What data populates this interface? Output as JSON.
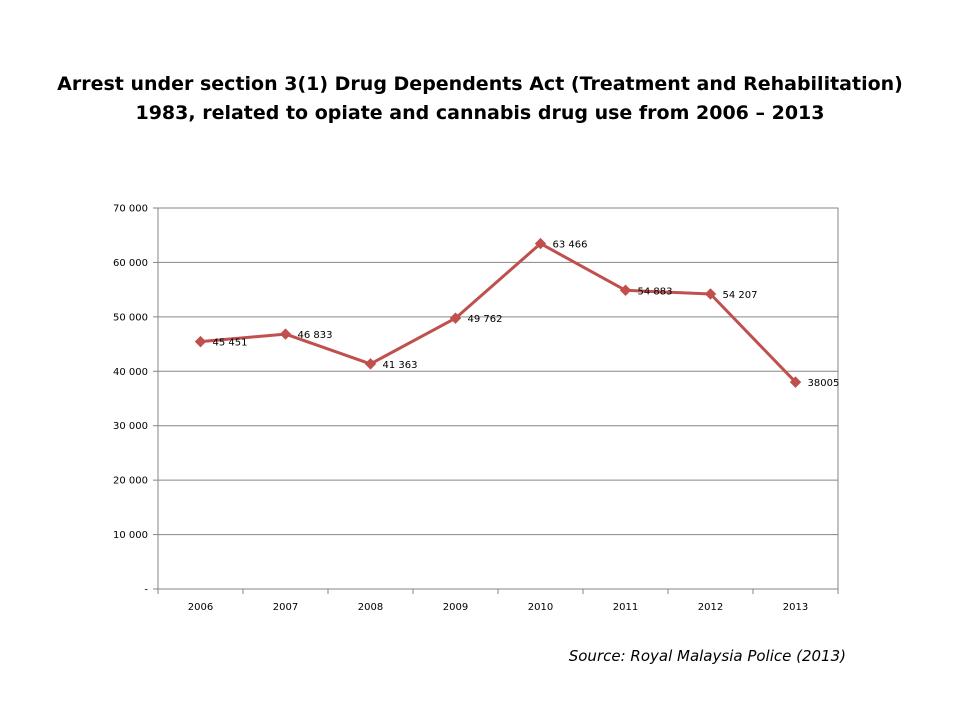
{
  "title": {
    "line1": "Arrest under section 3(1) Drug Dependents Act (Treatment and Rehabilitation)",
    "line2": "1983, related to opiate and cannabis drug use from 2006 – 2013"
  },
  "source": "Source: Royal Malaysia Police (2013)",
  "chart_data": {
    "type": "line",
    "categories": [
      "2006",
      "2007",
      "2008",
      "2009",
      "2010",
      "2011",
      "2012",
      "2013"
    ],
    "series": [
      {
        "values": [
          45451,
          46833,
          41363,
          49762,
          63466,
          54883,
          54207,
          38005
        ],
        "data_labels": [
          "45 451",
          "46 833",
          "41 363",
          "49 762",
          "63 466",
          "54 883",
          "54 207",
          "38005"
        ],
        "color": "#c0504d",
        "marker": "diamond"
      }
    ],
    "ylim": [
      0,
      70000
    ],
    "yticks": [
      0,
      10000,
      20000,
      30000,
      40000,
      50000,
      60000,
      70000
    ],
    "ytick_labels": [
      "-",
      "10 000",
      "20 000",
      "30 000",
      "40 000",
      "50 000",
      "60 000",
      "70 000"
    ],
    "grid": true,
    "legend": "none",
    "xlabel": "",
    "ylabel": ""
  }
}
